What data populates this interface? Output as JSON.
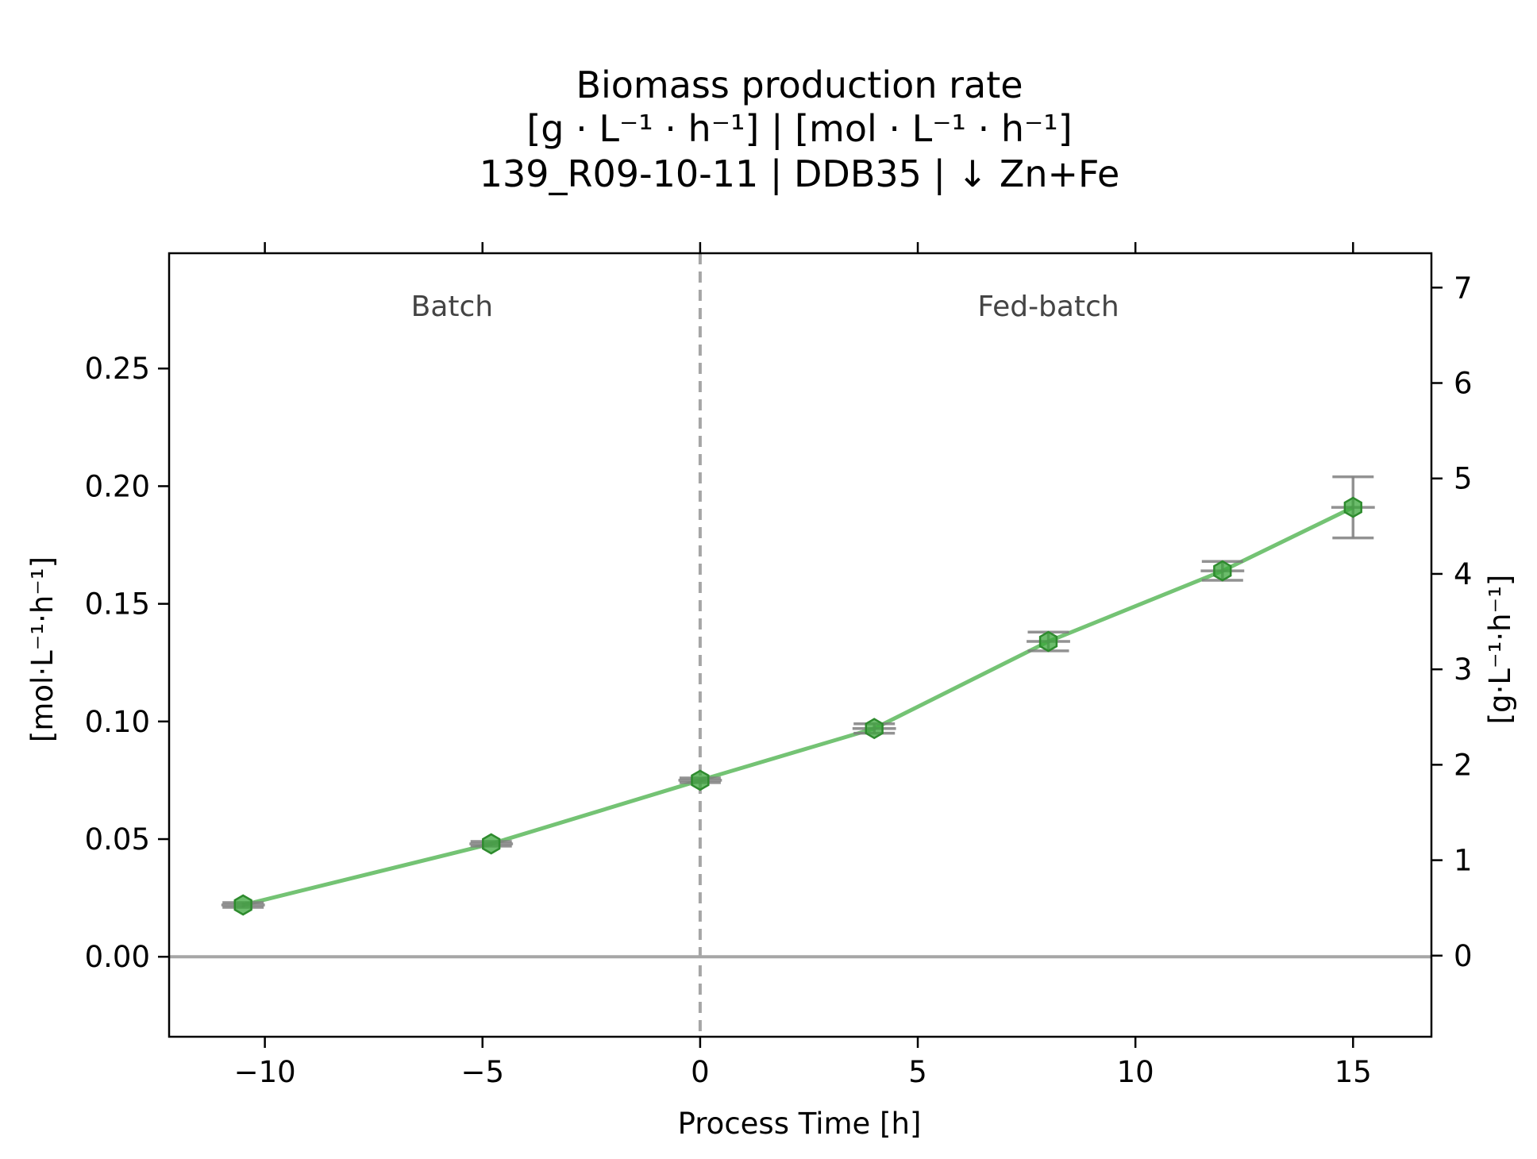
{
  "chart_data": {
    "type": "line",
    "title": [
      "Biomass production rate",
      "[g · L⁻¹ · h⁻¹]    |    [mol · L⁻¹ · h⁻¹]",
      "139_R09-10-11  |  DDB35  |  ↓ Zn+Fe"
    ],
    "xlabel": "Process Time [h]",
    "ylabel_left": "[mol·L⁻¹·h⁻¹]",
    "ylabel_right": "[g·L⁻¹·h⁻¹]",
    "xlim": [
      -12.2,
      16.8
    ],
    "ylim_left": [
      -0.034,
      0.299
    ],
    "ylim_right": [
      -0.85,
      7.36
    ],
    "x_ticks": [
      -10,
      -5,
      0,
      5,
      10,
      15
    ],
    "x_tick_labels": [
      "−10",
      "−5",
      "0",
      "5",
      "10",
      "15"
    ],
    "y_left_ticks": [
      0.0,
      0.05,
      0.1,
      0.15,
      0.2,
      0.25
    ],
    "y_left_tick_labels": [
      "0.00",
      "0.05",
      "0.10",
      "0.15",
      "0.20",
      "0.25"
    ],
    "y_right_ticks": [
      0,
      1,
      2,
      3,
      4,
      5,
      6,
      7
    ],
    "y_right_tick_labels": [
      "0",
      "1",
      "2",
      "3",
      "4",
      "5",
      "6",
      "7"
    ],
    "top_ticks": [
      -10,
      -5,
      0,
      5,
      10,
      15
    ],
    "phase_divider_x": 0,
    "phase_labels": [
      {
        "text": "Batch",
        "x": -5.7
      },
      {
        "text": "Fed-batch",
        "x": 8.0
      }
    ],
    "zero_line_y": 0,
    "series": [
      {
        "x": [
          -10.5,
          -4.8,
          0.0,
          4.0,
          8.0,
          12.0,
          15.0
        ],
        "y": [
          0.022,
          0.048,
          0.075,
          0.097,
          0.134,
          0.164,
          0.191
        ],
        "yerr": [
          0.001,
          0.001,
          0.001,
          0.002,
          0.004,
          0.004,
          0.013
        ],
        "xerr": [
          0.5,
          0.5,
          0.5,
          0.5,
          0.5,
          0.5,
          0.5
        ],
        "color": "#5cb85c",
        "marker_color": "#3aa63a",
        "errorbar_color": "#7f7f7f"
      }
    ],
    "colors": {
      "divider": "#a6a6a6",
      "zero_line": "#a6a6a6",
      "axes": "#000000"
    },
    "grid": false
  }
}
